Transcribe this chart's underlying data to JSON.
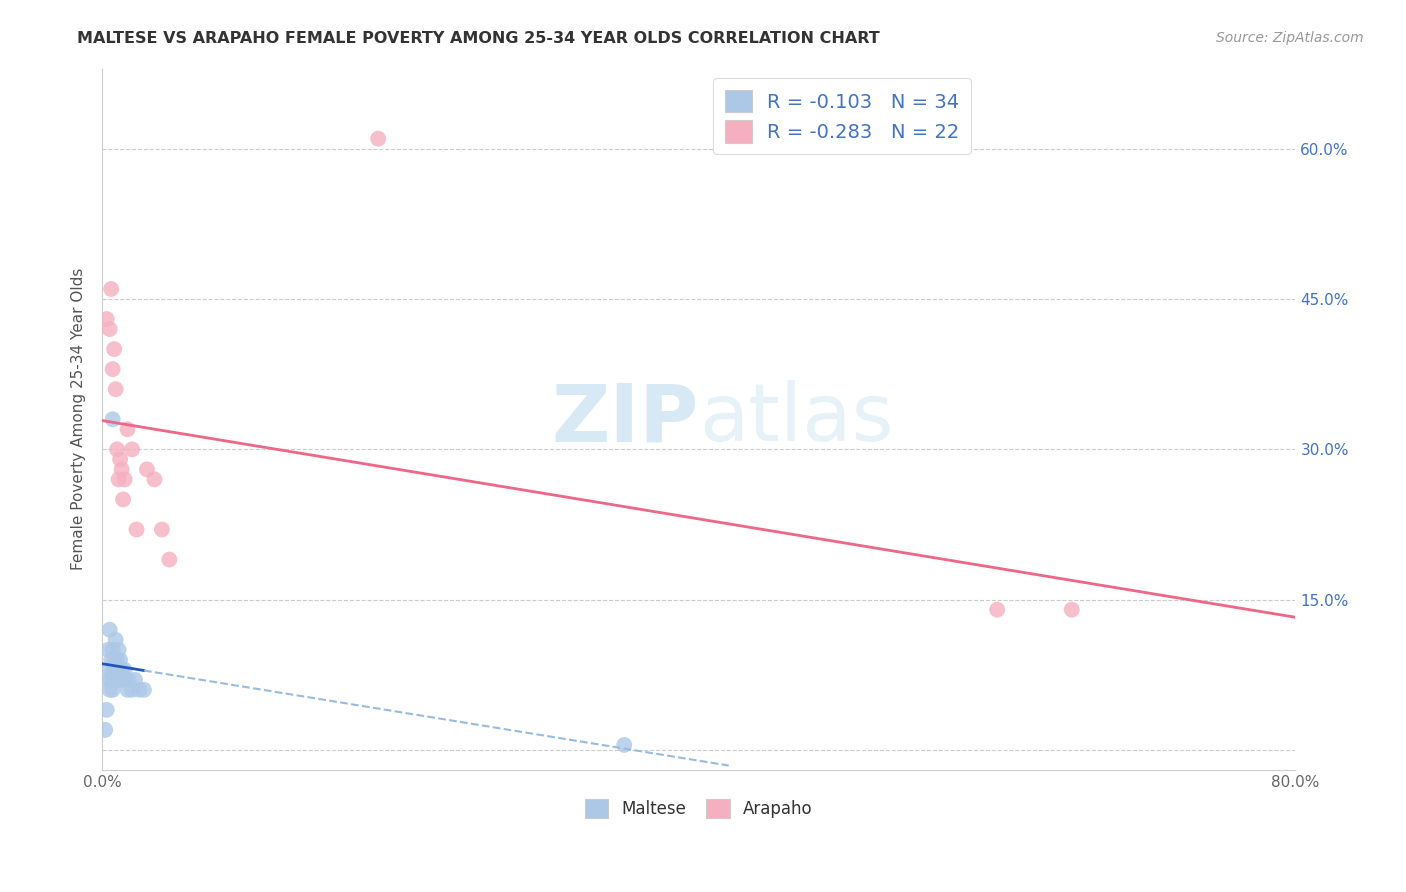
{
  "title": "MALTESE VS ARAPAHO FEMALE POVERTY AMONG 25-34 YEAR OLDS CORRELATION CHART",
  "source": "Source: ZipAtlas.com",
  "ylabel": "Female Poverty Among 25-34 Year Olds",
  "xlim": [
    0.0,
    0.8
  ],
  "ylim": [
    -0.02,
    0.68
  ],
  "legend_r_maltese": "-0.103",
  "legend_n_maltese": "34",
  "legend_r_arapaho": "-0.283",
  "legend_n_arapaho": "22",
  "maltese_color": "#adc8e6",
  "arapaho_color": "#f5afc0",
  "maltese_line_color": "#2255bb",
  "arapaho_line_color": "#ee6688",
  "maltese_line_dashed_color": "#99bbdd",
  "watermark_zip": "ZIP",
  "watermark_atlas": "atlas",
  "maltese_x": [
    0.002,
    0.003,
    0.004,
    0.004,
    0.005,
    0.005,
    0.005,
    0.006,
    0.006,
    0.007,
    0.007,
    0.007,
    0.008,
    0.008,
    0.009,
    0.009,
    0.01,
    0.01,
    0.011,
    0.011,
    0.012,
    0.012,
    0.013,
    0.014,
    0.015,
    0.016,
    0.017,
    0.018,
    0.02,
    0.022,
    0.025,
    0.028,
    0.007,
    0.35
  ],
  "maltese_y": [
    0.02,
    0.04,
    0.07,
    0.1,
    0.06,
    0.08,
    0.12,
    0.07,
    0.09,
    0.06,
    0.08,
    0.1,
    0.07,
    0.09,
    0.08,
    0.11,
    0.07,
    0.09,
    0.08,
    0.1,
    0.07,
    0.09,
    0.08,
    0.07,
    0.08,
    0.07,
    0.06,
    0.07,
    0.06,
    0.07,
    0.06,
    0.06,
    0.33,
    0.005
  ],
  "arapaho_x": [
    0.003,
    0.005,
    0.006,
    0.007,
    0.008,
    0.009,
    0.01,
    0.011,
    0.012,
    0.013,
    0.014,
    0.015,
    0.017,
    0.02,
    0.023,
    0.03,
    0.035,
    0.04,
    0.045,
    0.6,
    0.65,
    0.185
  ],
  "arapaho_y": [
    0.43,
    0.42,
    0.46,
    0.38,
    0.4,
    0.36,
    0.3,
    0.27,
    0.29,
    0.28,
    0.25,
    0.27,
    0.32,
    0.3,
    0.22,
    0.28,
    0.27,
    0.22,
    0.19,
    0.14,
    0.14,
    0.61
  ]
}
